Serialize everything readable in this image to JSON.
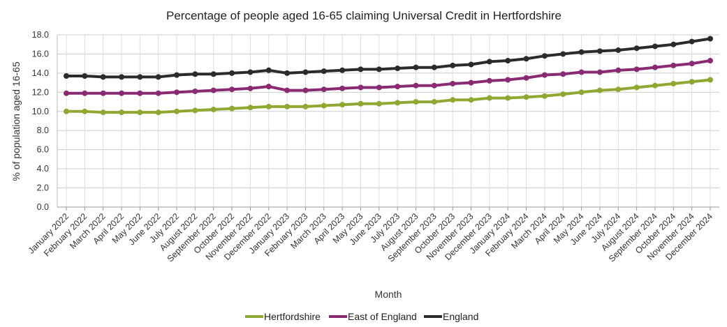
{
  "chart_data": {
    "type": "line",
    "title": "Percentage of people aged 16-65 claiming Universal Credit in Hertfordshire",
    "xlabel": "Month",
    "ylabel": "% of population aged 16-65",
    "ylim": [
      0,
      18
    ],
    "yticks": [
      "0.0",
      "2.0",
      "4.0",
      "6.0",
      "8.0",
      "10.0",
      "12.0",
      "14.0",
      "16.0",
      "18.0"
    ],
    "grid": true,
    "legend_position": "bottom",
    "categories": [
      "January 2022",
      "February 2022",
      "March 2022",
      "April 2022",
      "May 2022",
      "June 2022",
      "July 2022",
      "August 2022",
      "September 2022",
      "October 2022",
      "November 2022",
      "December 2022",
      "January 2023",
      "February 2023",
      "March 2023",
      "April 2023",
      "May 2023",
      "June 2023",
      "July 2023",
      "August 2023",
      "September 2023",
      "October 2023",
      "November 2023",
      "December 2023",
      "January 2024",
      "February 2024",
      "March 2024",
      "April 2024",
      "May 2024",
      "June 2024",
      "July 2024",
      "August 2024",
      "September 2024",
      "October 2024",
      "November 2024",
      "December 2024"
    ],
    "series": [
      {
        "name": "Hertfordshire",
        "color": "#8fa832",
        "values": [
          10.0,
          10.0,
          9.9,
          9.9,
          9.9,
          9.9,
          10.0,
          10.1,
          10.2,
          10.3,
          10.4,
          10.5,
          10.5,
          10.5,
          10.6,
          10.7,
          10.8,
          10.8,
          10.9,
          11.0,
          11.0,
          11.2,
          11.2,
          11.4,
          11.4,
          11.5,
          11.6,
          11.8,
          12.0,
          12.2,
          12.3,
          12.5,
          12.7,
          12.9,
          13.1,
          13.3
        ]
      },
      {
        "name": "East of England",
        "color": "#8a2a73",
        "values": [
          11.9,
          11.9,
          11.9,
          11.9,
          11.9,
          11.9,
          12.0,
          12.1,
          12.2,
          12.3,
          12.4,
          12.6,
          12.2,
          12.2,
          12.3,
          12.4,
          12.5,
          12.5,
          12.6,
          12.7,
          12.7,
          12.9,
          13.0,
          13.2,
          13.3,
          13.5,
          13.8,
          13.9,
          14.1,
          14.1,
          14.3,
          14.4,
          14.6,
          14.8,
          15.0,
          15.3
        ]
      },
      {
        "name": "England",
        "color": "#2b2b2b",
        "values": [
          13.7,
          13.7,
          13.6,
          13.6,
          13.6,
          13.6,
          13.8,
          13.9,
          13.9,
          14.0,
          14.1,
          14.3,
          14.0,
          14.1,
          14.2,
          14.3,
          14.4,
          14.4,
          14.5,
          14.6,
          14.6,
          14.8,
          14.9,
          15.2,
          15.3,
          15.5,
          15.8,
          16.0,
          16.2,
          16.3,
          16.4,
          16.6,
          16.8,
          17.0,
          17.3,
          17.6
        ]
      }
    ]
  }
}
